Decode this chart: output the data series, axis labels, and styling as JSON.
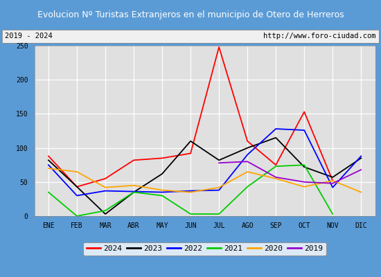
{
  "title": "Evolucion Nº Turistas Extranjeros en el municipio de Otero de Herreros",
  "subtitle_left": "2019 - 2024",
  "subtitle_right": "http://www.foro-ciudad.com",
  "title_bg_color": "#5b9bd5",
  "title_text_color": "#ffffff",
  "subtitle_bg_color": "#f0f0f0",
  "plot_bg_color": "#e0e0e0",
  "months": [
    "ENE",
    "FEB",
    "MAR",
    "ABR",
    "MAY",
    "JUN",
    "JUL",
    "AGO",
    "SEP",
    "OCT",
    "NOV",
    "DIC"
  ],
  "series": {
    "2024": {
      "color": "#ff0000",
      "values": [
        88,
        43,
        55,
        82,
        85,
        92,
        248,
        110,
        75,
        153,
        52,
        null
      ]
    },
    "2023": {
      "color": "#000000",
      "values": [
        82,
        43,
        3,
        35,
        62,
        110,
        82,
        100,
        115,
        72,
        57,
        85
      ]
    },
    "2022": {
      "color": "#0000ff",
      "values": [
        75,
        30,
        37,
        36,
        35,
        37,
        38,
        90,
        128,
        126,
        42,
        88
      ]
    },
    "2021": {
      "color": "#00cc00",
      "values": [
        35,
        0,
        8,
        35,
        30,
        3,
        3,
        43,
        73,
        75,
        3,
        null
      ]
    },
    "2020": {
      "color": "#ffa500",
      "values": [
        70,
        65,
        42,
        45,
        38,
        35,
        42,
        65,
        55,
        43,
        52,
        35
      ]
    },
    "2019": {
      "color": "#9900cc",
      "values": [
        null,
        null,
        null,
        null,
        null,
        null,
        78,
        80,
        57,
        50,
        48,
        68
      ]
    }
  },
  "ylim": [
    0,
    250
  ],
  "yticks": [
    0,
    50,
    100,
    150,
    200,
    250
  ],
  "border_color": "#5b9bd5",
  "grid_color": "#ffffff",
  "legend_order": [
    "2024",
    "2023",
    "2022",
    "2021",
    "2020",
    "2019"
  ]
}
